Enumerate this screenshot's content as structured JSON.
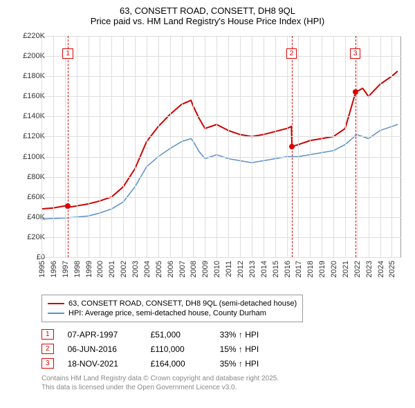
{
  "title_line1": "63, CONSETT ROAD, CONSETT, DH8 9QL",
  "title_line2": "Price paid vs. HM Land Registry's House Price Index (HPI)",
  "chart": {
    "type": "line",
    "xlim": [
      1995,
      2025.8
    ],
    "ylim": [
      0,
      220000
    ],
    "ytick_step": 20000,
    "ytick_labels": [
      "£0",
      "£20K",
      "£40K",
      "£60K",
      "£80K",
      "£100K",
      "£120K",
      "£140K",
      "£160K",
      "£180K",
      "£200K",
      "£220K"
    ],
    "xtick_years": [
      1995,
      1996,
      1997,
      1998,
      1999,
      2000,
      2001,
      2002,
      2003,
      2004,
      2005,
      2006,
      2007,
      2008,
      2009,
      2010,
      2011,
      2012,
      2013,
      2014,
      2015,
      2016,
      2017,
      2018,
      2019,
      2020,
      2021,
      2022,
      2023,
      2024,
      2025
    ],
    "background_color": "#ffffff",
    "grid_color": "#dddddd",
    "series": [
      {
        "name": "63, CONSETT ROAD, CONSETT, DH8 9QL (semi-detached house)",
        "color": "#cc0000",
        "width": 2,
        "data": [
          [
            1995,
            48000
          ],
          [
            1996,
            49000
          ],
          [
            1997,
            51000
          ],
          [
            1997.5,
            50000
          ],
          [
            1998,
            51000
          ],
          [
            1999,
            53000
          ],
          [
            2000,
            56000
          ],
          [
            2001,
            60000
          ],
          [
            2002,
            70000
          ],
          [
            2003,
            88000
          ],
          [
            2004,
            115000
          ],
          [
            2005,
            130000
          ],
          [
            2006,
            142000
          ],
          [
            2007,
            152000
          ],
          [
            2007.8,
            156000
          ],
          [
            2008,
            150000
          ],
          [
            2008.5,
            138000
          ],
          [
            2009,
            128000
          ],
          [
            2010,
            132000
          ],
          [
            2011,
            126000
          ],
          [
            2012,
            122000
          ],
          [
            2013,
            120000
          ],
          [
            2014,
            122000
          ],
          [
            2015,
            125000
          ],
          [
            2016,
            128000
          ],
          [
            2016.4,
            130000
          ],
          [
            2016.45,
            110000
          ],
          [
            2017,
            112000
          ],
          [
            2018,
            116000
          ],
          [
            2019,
            118000
          ],
          [
            2020,
            120000
          ],
          [
            2021,
            128000
          ],
          [
            2021.9,
            164000
          ],
          [
            2022.5,
            168000
          ],
          [
            2023,
            160000
          ],
          [
            2024,
            172000
          ],
          [
            2025,
            180000
          ],
          [
            2025.5,
            185000
          ]
        ]
      },
      {
        "name": "HPI: Average price, semi-detached house, County Durham",
        "color": "#5b8fc7",
        "width": 1.5,
        "data": [
          [
            1995,
            38000
          ],
          [
            1996,
            38500
          ],
          [
            1997,
            39000
          ],
          [
            1998,
            40000
          ],
          [
            1999,
            41000
          ],
          [
            2000,
            44000
          ],
          [
            2001,
            48000
          ],
          [
            2002,
            55000
          ],
          [
            2003,
            70000
          ],
          [
            2004,
            90000
          ],
          [
            2005,
            100000
          ],
          [
            2006,
            108000
          ],
          [
            2007,
            115000
          ],
          [
            2007.8,
            118000
          ],
          [
            2008,
            115000
          ],
          [
            2008.5,
            105000
          ],
          [
            2009,
            98000
          ],
          [
            2010,
            102000
          ],
          [
            2011,
            98000
          ],
          [
            2012,
            96000
          ],
          [
            2013,
            94000
          ],
          [
            2014,
            96000
          ],
          [
            2015,
            98000
          ],
          [
            2016,
            100000
          ],
          [
            2017,
            100000
          ],
          [
            2018,
            102000
          ],
          [
            2019,
            104000
          ],
          [
            2020,
            106000
          ],
          [
            2021,
            112000
          ],
          [
            2022,
            122000
          ],
          [
            2023,
            118000
          ],
          [
            2024,
            126000
          ],
          [
            2025,
            130000
          ],
          [
            2025.5,
            132000
          ]
        ]
      }
    ],
    "markers": [
      {
        "num": "1",
        "x": 1997.27,
        "y": 51000
      },
      {
        "num": "2",
        "x": 2016.43,
        "y": 110000
      },
      {
        "num": "3",
        "x": 2021.88,
        "y": 164000
      }
    ]
  },
  "legend": {
    "items": [
      {
        "color": "#cc0000",
        "label": "63, CONSETT ROAD, CONSETT, DH8 9QL (semi-detached house)"
      },
      {
        "color": "#5b8fc7",
        "label": "HPI: Average price, semi-detached house, County Durham"
      }
    ]
  },
  "events": [
    {
      "num": "1",
      "date": "07-APR-1997",
      "price": "£51,000",
      "change": "33% ↑ HPI"
    },
    {
      "num": "2",
      "date": "06-JUN-2016",
      "price": "£110,000",
      "change": "15% ↑ HPI"
    },
    {
      "num": "3",
      "date": "18-NOV-2021",
      "price": "£164,000",
      "change": "35% ↑ HPI"
    }
  ],
  "footer_line1": "Contains HM Land Registry data © Crown copyright and database right 2025.",
  "footer_line2": "This data is licensed under the Open Government Licence v3.0."
}
